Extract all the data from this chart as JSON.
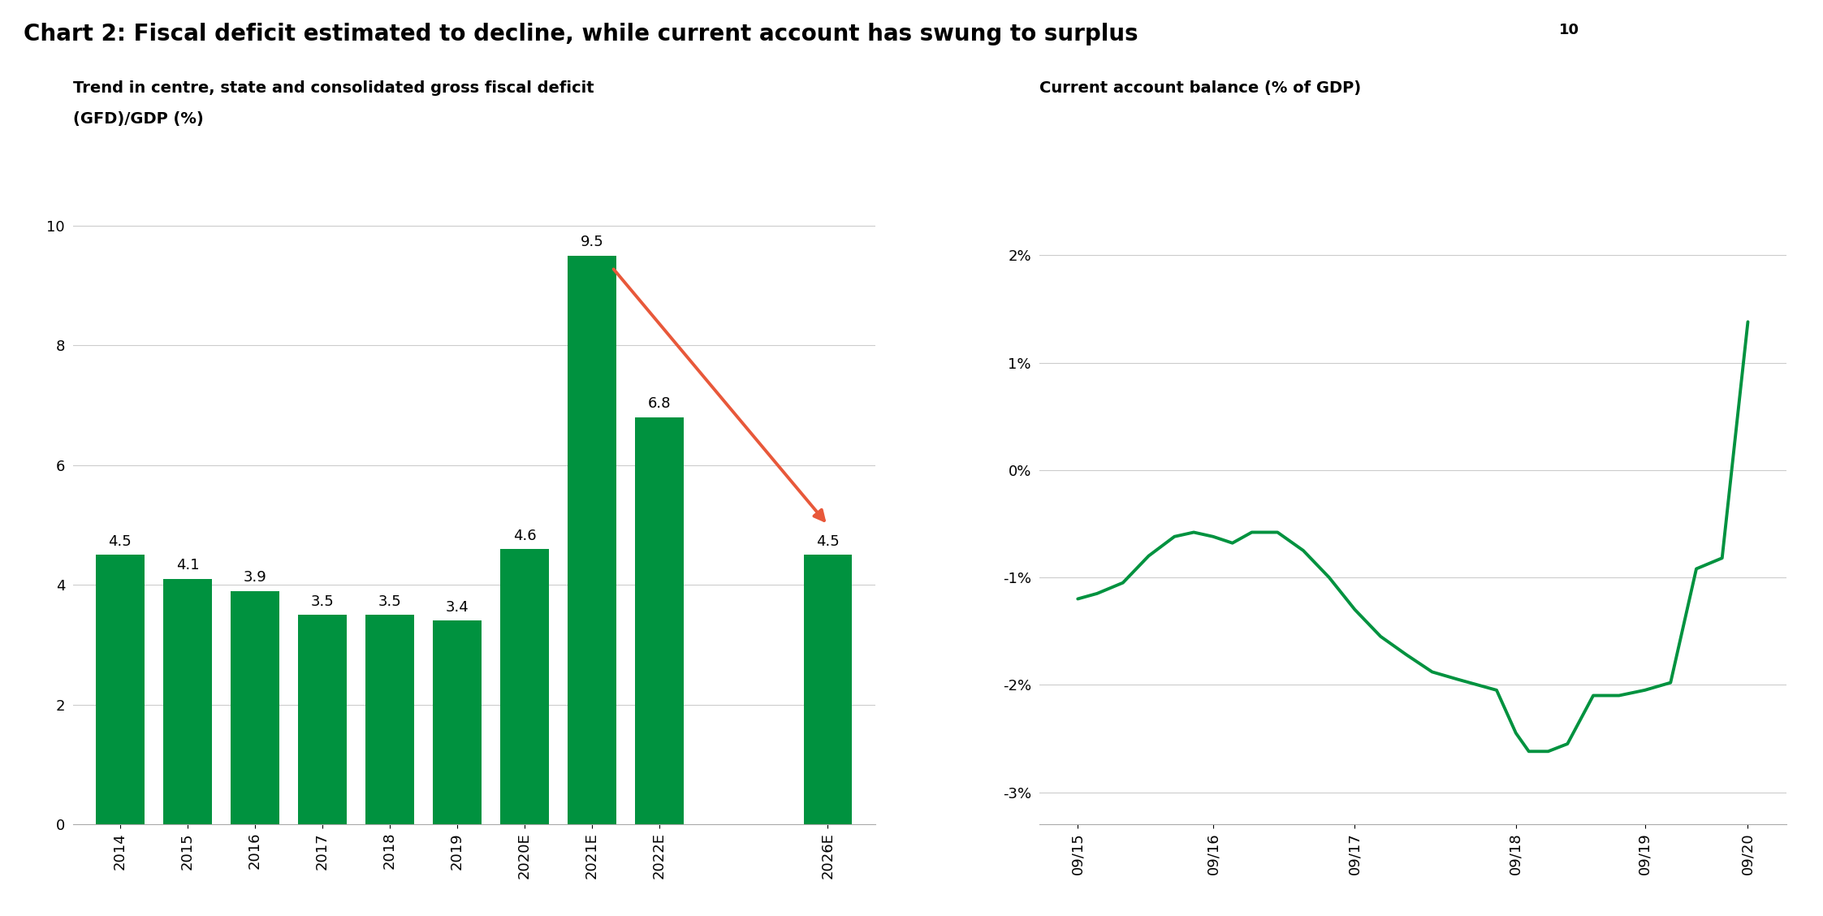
{
  "title": "Chart 2: Fiscal deficit estimated to decline, while current account has swung to surplus",
  "title_superscript": "10",
  "left_subtitle_line1": "Trend in centre, state and consolidated gross fiscal deficit",
  "left_subtitle_line2": "(GFD)/GDP (%)",
  "right_subtitle": "Current account balance (% of GDP)",
  "bar_categories": [
    "2014",
    "2015",
    "2016",
    "2017",
    "2018",
    "2019",
    "2020E",
    "2021E",
    "2022E",
    "2026E"
  ],
  "bar_values": [
    4.5,
    4.1,
    3.9,
    3.5,
    3.5,
    3.4,
    4.6,
    9.5,
    6.8,
    4.5
  ],
  "bar_color": "#00923F",
  "left_ylim": [
    0,
    10.4
  ],
  "left_yticks": [
    0,
    2,
    4,
    6,
    8,
    10
  ],
  "arrow_color": "#E8583A",
  "line_x": [
    0,
    0.15,
    0.35,
    0.55,
    0.75,
    0.9,
    1.05,
    1.2,
    1.35,
    1.55,
    1.75,
    1.95,
    2.15,
    2.35,
    2.55,
    2.75,
    2.95,
    3.1,
    3.25,
    3.4,
    3.5,
    3.65,
    3.8,
    4.0,
    4.2,
    4.4,
    4.6,
    4.8,
    5.0,
    5.2
  ],
  "line_y": [
    -1.2,
    -1.15,
    -1.05,
    -0.8,
    -0.62,
    -0.58,
    -0.62,
    -0.68,
    -0.58,
    -0.58,
    -0.75,
    -1.0,
    -1.3,
    -1.55,
    -1.72,
    -1.88,
    -1.95,
    -2.0,
    -2.05,
    -2.45,
    -2.62,
    -2.62,
    -2.55,
    -2.1,
    -2.1,
    -2.05,
    -1.98,
    -0.92,
    -0.82,
    1.38
  ],
  "line_color": "#00923F",
  "line_width": 2.8,
  "right_xtick_labels": [
    "09/15",
    "09/16",
    "09/17",
    "09/18",
    "09/19",
    "09/20"
  ],
  "right_xtick_positions": [
    0,
    1.05,
    2.15,
    3.4,
    4.4,
    5.2
  ],
  "right_ylim": [
    -3.3,
    2.5
  ],
  "right_yticks": [
    -3,
    -2,
    -1,
    0,
    1,
    2
  ],
  "right_ytick_labels": [
    "-3%",
    "-2%",
    "-1%",
    "0%",
    "1%",
    "2%"
  ],
  "background_color": "#ffffff",
  "grid_color": "#cccccc",
  "title_fontsize": 20,
  "subtitle_fontsize": 14,
  "tick_fontsize": 13,
  "value_label_fontsize": 13
}
